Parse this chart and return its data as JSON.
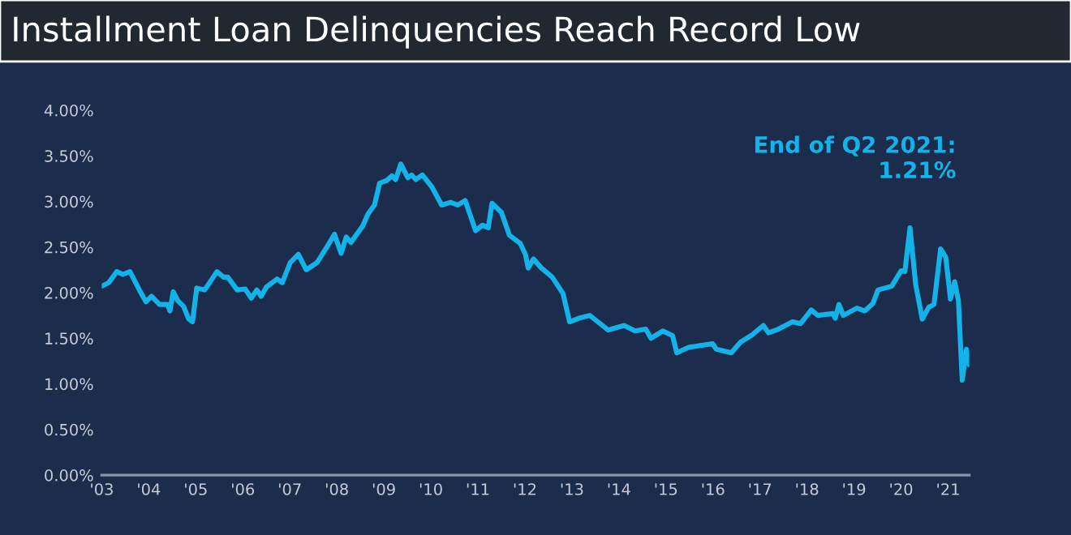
{
  "chart_data": {
    "type": "line",
    "title": "Installment Loan Delinquencies Reach Record Low",
    "annotations": [
      "End of Q2 2021:\n1.21%"
    ],
    "x": [
      2003.0,
      2003.15,
      2003.32,
      2003.45,
      2003.6,
      2003.8,
      2003.94,
      2004.06,
      2004.23,
      2004.4,
      2004.45,
      2004.52,
      2004.62,
      2004.74,
      2004.85,
      2004.93,
      2005.02,
      2005.19,
      2005.45,
      2005.59,
      2005.68,
      2005.88,
      2006.05,
      2006.18,
      2006.3,
      2006.39,
      2006.5,
      2006.73,
      2006.84,
      2007.01,
      2007.18,
      2007.35,
      2007.58,
      2007.8,
      2007.95,
      2008.09,
      2008.2,
      2008.3,
      2008.55,
      2008.66,
      2008.8,
      2008.91,
      2009.06,
      2009.17,
      2009.25,
      2009.36,
      2009.51,
      2009.59,
      2009.68,
      2009.82,
      2010.02,
      2010.23,
      2010.42,
      2010.57,
      2010.73,
      2010.95,
      2011.1,
      2011.22,
      2011.3,
      2011.5,
      2011.67,
      2011.9,
      2012.01,
      2012.07,
      2012.18,
      2012.35,
      2012.58,
      2012.81,
      2012.95,
      2013.15,
      2013.38,
      2013.77,
      2014.11,
      2014.34,
      2014.57,
      2014.68,
      2014.93,
      2015.14,
      2015.23,
      2015.48,
      2015.99,
      2016.07,
      2016.39,
      2016.59,
      2016.84,
      2017.07,
      2017.18,
      2017.39,
      2017.69,
      2017.86,
      2018.09,
      2018.23,
      2018.55,
      2018.6,
      2018.68,
      2018.77,
      2019.06,
      2019.23,
      2019.4,
      2019.51,
      2019.8,
      2020.0,
      2020.08,
      2020.19,
      2020.31,
      2020.45,
      2020.59,
      2020.7,
      2020.84,
      2020.95,
      2021.05,
      2021.14,
      2021.22,
      2021.3,
      2021.39,
      2021.45
    ],
    "series": [
      {
        "color": "#13b3ea",
        "values": [
          2.07,
          2.11,
          2.23,
          2.2,
          2.23,
          2.03,
          1.9,
          1.96,
          1.87,
          1.87,
          1.8,
          2.01,
          1.91,
          1.85,
          1.71,
          1.68,
          2.05,
          2.03,
          2.23,
          2.17,
          2.17,
          2.03,
          2.04,
          1.94,
          2.03,
          1.96,
          2.06,
          2.15,
          2.11,
          2.33,
          2.42,
          2.25,
          2.33,
          2.51,
          2.64,
          2.43,
          2.61,
          2.55,
          2.73,
          2.86,
          2.96,
          3.2,
          3.23,
          3.28,
          3.24,
          3.41,
          3.26,
          3.29,
          3.24,
          3.29,
          3.16,
          2.96,
          2.99,
          2.96,
          3.01,
          2.68,
          2.74,
          2.71,
          2.98,
          2.88,
          2.63,
          2.54,
          2.42,
          2.27,
          2.37,
          2.27,
          2.17,
          1.99,
          1.68,
          1.72,
          1.75,
          1.59,
          1.64,
          1.58,
          1.6,
          1.5,
          1.58,
          1.53,
          1.34,
          1.4,
          1.44,
          1.38,
          1.34,
          1.46,
          1.54,
          1.64,
          1.56,
          1.6,
          1.68,
          1.66,
          1.81,
          1.75,
          1.77,
          1.72,
          1.87,
          1.75,
          1.83,
          1.8,
          1.88,
          2.03,
          2.07,
          2.24,
          2.23,
          2.71,
          2.09,
          1.71,
          1.84,
          1.87,
          2.48,
          2.39,
          1.93,
          2.12,
          1.91,
          1.04,
          1.38,
          1.21
        ]
      }
    ],
    "xlim": [
      2003.0,
      2021.45
    ],
    "xticks": [
      {
        "value": 2003,
        "label": "'03"
      },
      {
        "value": 2004,
        "label": "'04"
      },
      {
        "value": 2005,
        "label": "'05"
      },
      {
        "value": 2006,
        "label": "'06"
      },
      {
        "value": 2007,
        "label": "'07"
      },
      {
        "value": 2008,
        "label": "'08"
      },
      {
        "value": 2009,
        "label": "'09"
      },
      {
        "value": 2010,
        "label": "'10"
      },
      {
        "value": 2011,
        "label": "'11"
      },
      {
        "value": 2012,
        "label": "'12"
      },
      {
        "value": 2013,
        "label": "'13"
      },
      {
        "value": 2014,
        "label": "'14"
      },
      {
        "value": 2015,
        "label": "'15"
      },
      {
        "value": 2016,
        "label": "'16"
      },
      {
        "value": 2017,
        "label": "'17"
      },
      {
        "value": 2018,
        "label": "'18"
      },
      {
        "value": 2019,
        "label": "'19"
      },
      {
        "value": 2020,
        "label": "'20"
      },
      {
        "value": 2021,
        "label": "'21"
      }
    ],
    "ylim": [
      0,
      4
    ],
    "yticks": [
      {
        "value": 0,
        "label": "0.00%"
      },
      {
        "value": 0.5,
        "label": "0.50%"
      },
      {
        "value": 1,
        "label": "1.00%"
      },
      {
        "value": 1.5,
        "label": "1.50%"
      },
      {
        "value": 2,
        "label": "2.00%"
      },
      {
        "value": 2.5,
        "label": "2.50%"
      },
      {
        "value": 3,
        "label": "3.00%"
      },
      {
        "value": 3.5,
        "label": "3.50%"
      },
      {
        "value": 4,
        "label": "4.00%"
      }
    ],
    "grid": false,
    "legend": false,
    "marker": "none",
    "line_style": "solid"
  }
}
